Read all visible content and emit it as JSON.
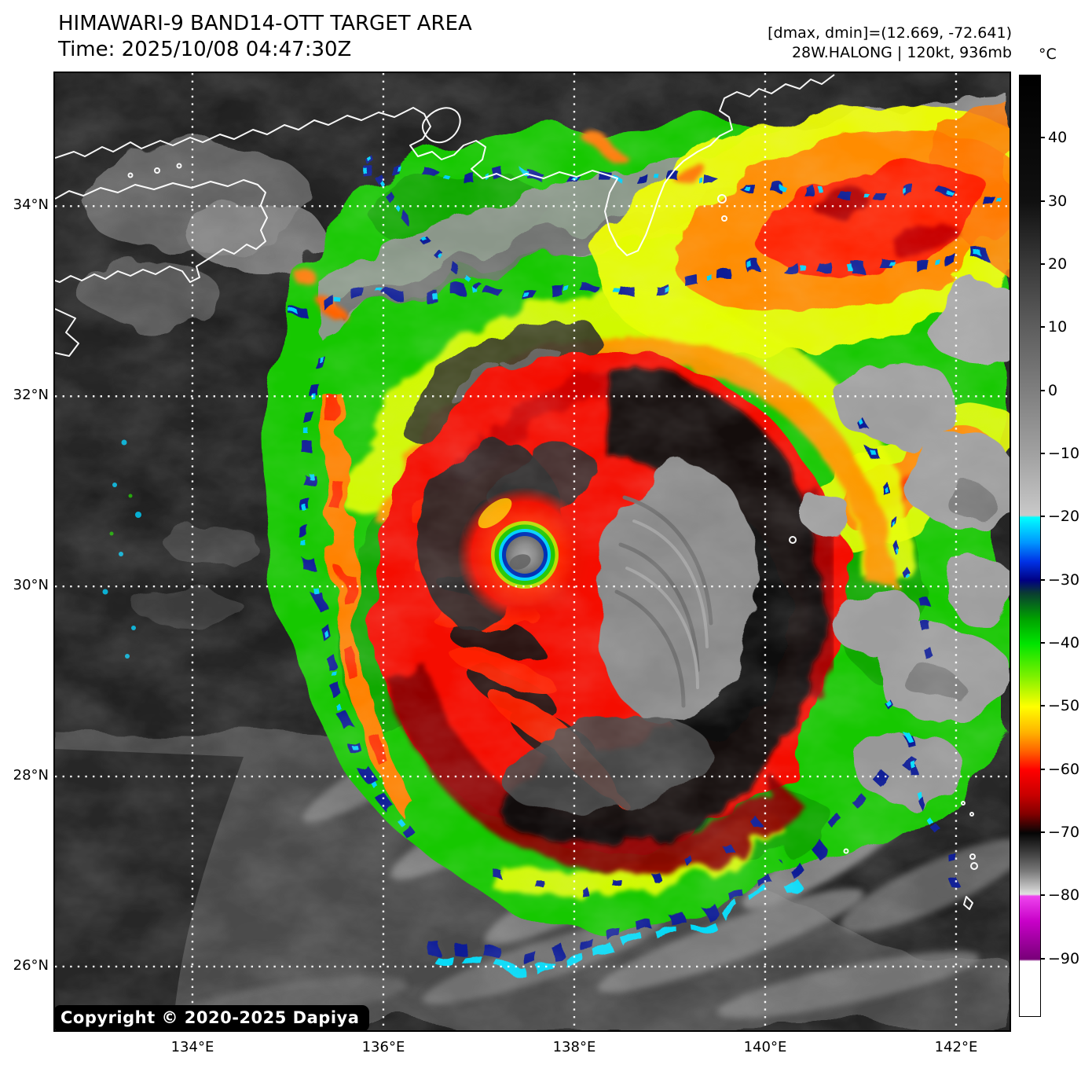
{
  "header": {
    "title": "HIMAWARI-9 BAND14-OTT TARGET AREA",
    "time_label": "Time: 2025/10/08 04:47:30Z",
    "dmax_dmin": "[dmax, dmin]=(12.669, -72.641)",
    "storm_info": "28W.HALONG | 120kt, 936mb"
  },
  "copyright": "Copyright © 2020-2025 Dapiya",
  "chart_data": {
    "type": "heatmap",
    "title": "HIMAWARI-9 BAND14-OTT TARGET AREA",
    "subtitle": "Time: 2025/10/08 04:47:30Z",
    "satellite": "Himawari-9",
    "band": "BAND14-OTT",
    "storm": {
      "id": "28W",
      "name": "HALONG",
      "intensity_kt": 120,
      "pressure_mb": 936,
      "dmax_c": 12.669,
      "dmin_c": -72.641,
      "eye_lon_e": 137.45,
      "eye_lat_n": 30.35
    },
    "axes": {
      "lon_range_e": [
        132.56,
        142.56
      ],
      "lat_range_n": [
        25.33,
        35.4
      ],
      "lon_ticks": [
        {
          "value": 134,
          "label": "134°E"
        },
        {
          "value": 136,
          "label": "136°E"
        },
        {
          "value": 138,
          "label": "138°E"
        },
        {
          "value": 140,
          "label": "140°E"
        },
        {
          "value": 142,
          "label": "142°E"
        }
      ],
      "lat_ticks": [
        {
          "value": 34,
          "label": "34°N"
        },
        {
          "value": 32,
          "label": "32°N"
        },
        {
          "value": 30,
          "label": "30°N"
        },
        {
          "value": 28,
          "label": "28°N"
        },
        {
          "value": 26,
          "label": "26°N"
        }
      ],
      "grid_style": "dotted-white"
    },
    "colorbar": {
      "unit": "°C",
      "range": [
        50,
        -99
      ],
      "ticks": [
        {
          "value": 40,
          "label": "40"
        },
        {
          "value": 30,
          "label": "30"
        },
        {
          "value": 20,
          "label": "20"
        },
        {
          "value": 10,
          "label": "10"
        },
        {
          "value": 0,
          "label": "0"
        },
        {
          "value": -10,
          "label": "−10"
        },
        {
          "value": -20,
          "label": "−20"
        },
        {
          "value": -30,
          "label": "−30"
        },
        {
          "value": -40,
          "label": "−40"
        },
        {
          "value": -50,
          "label": "−50"
        },
        {
          "value": -60,
          "label": "−60"
        },
        {
          "value": -70,
          "label": "−70"
        },
        {
          "value": -80,
          "label": "−80"
        },
        {
          "value": -90,
          "label": "−90"
        }
      ],
      "stops": [
        {
          "v": 50,
          "c": "#000000"
        },
        {
          "v": 30,
          "c": "#101010"
        },
        {
          "v": 20,
          "c": "#3a3a3a"
        },
        {
          "v": 10,
          "c": "#5e5e5e"
        },
        {
          "v": 0,
          "c": "#7f7f7f"
        },
        {
          "v": -10,
          "c": "#a1a1a1"
        },
        {
          "v": -19.7,
          "c": "#c9c9c9"
        },
        {
          "v": -20,
          "c": "#00ffff"
        },
        {
          "v": -24,
          "c": "#0096ff"
        },
        {
          "v": -27,
          "c": "#0032e6"
        },
        {
          "v": -30,
          "c": "#000082"
        },
        {
          "v": -32,
          "c": "#0a3c32"
        },
        {
          "v": -36,
          "c": "#00a000"
        },
        {
          "v": -40,
          "c": "#00e400"
        },
        {
          "v": -45,
          "c": "#78f000"
        },
        {
          "v": -50,
          "c": "#ffff00"
        },
        {
          "v": -54,
          "c": "#ffb400"
        },
        {
          "v": -57,
          "c": "#ff6400"
        },
        {
          "v": -60,
          "c": "#ff0000"
        },
        {
          "v": -64,
          "c": "#c80000"
        },
        {
          "v": -67,
          "c": "#820000"
        },
        {
          "v": -70,
          "c": "#050505"
        },
        {
          "v": -73,
          "c": "#3c3c3c"
        },
        {
          "v": -76,
          "c": "#787878"
        },
        {
          "v": -79.7,
          "c": "#e1e1e1"
        },
        {
          "v": -80,
          "c": "#ee44ee"
        },
        {
          "v": -84,
          "c": "#c800c8"
        },
        {
          "v": -90,
          "c": "#780078"
        },
        {
          "v": -90.3,
          "c": "#ffffff"
        },
        {
          "v": -99,
          "c": "#ffffff"
        }
      ]
    }
  }
}
